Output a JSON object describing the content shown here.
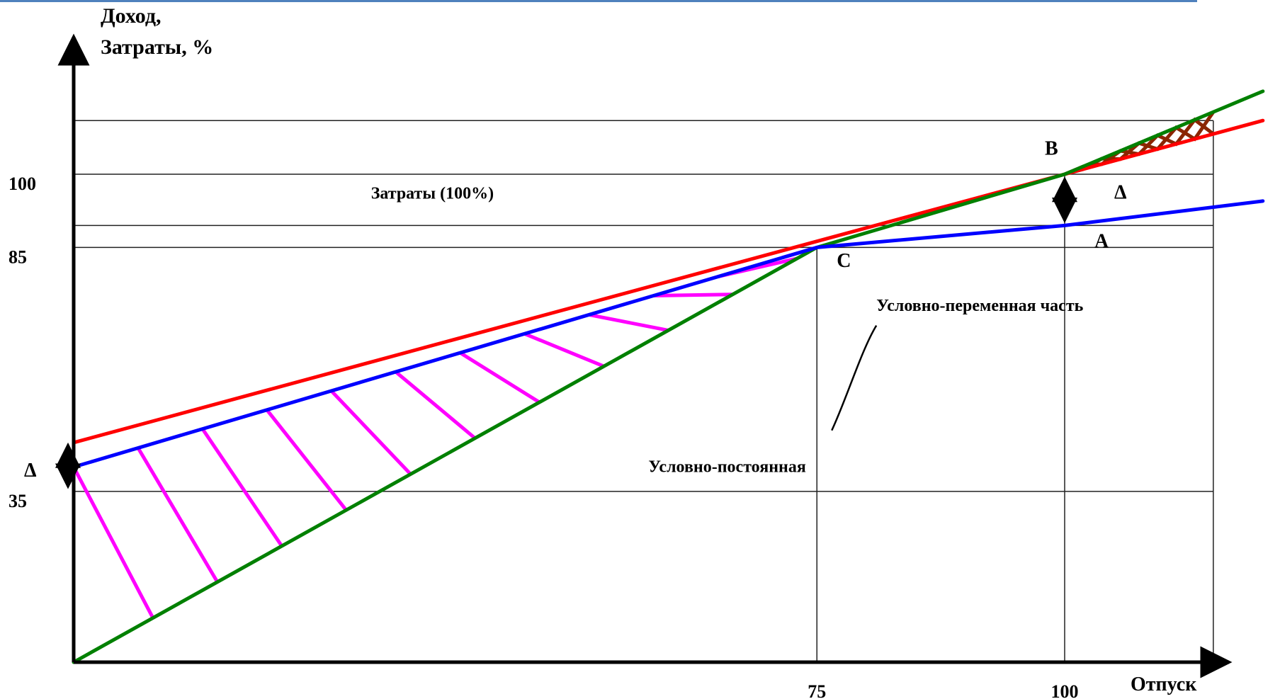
{
  "accent_color": "#4f81bd",
  "chart_data": {
    "type": "line",
    "y_axis_title": [
      "Доход,",
      "Затраты, %"
    ],
    "x_axis_title": "Отпуск",
    "y_ticks": [
      {
        "value": 35,
        "label": "35"
      },
      {
        "value": 85,
        "label": "85"
      },
      {
        "value": 100,
        "label": "100"
      }
    ],
    "x_ticks": [
      {
        "value": 75,
        "label": "75"
      },
      {
        "value": 100,
        "label": "100"
      }
    ],
    "ylim": [
      0,
      130
    ],
    "xlim": [
      0,
      120
    ],
    "series": [
      {
        "key": "total_cost",
        "color": "#ff0000",
        "x": [
          0,
          100,
          120
        ],
        "y": [
          45,
          100,
          111
        ]
      },
      {
        "key": "revenue",
        "color": "#008000",
        "x": [
          0,
          75,
          100,
          120
        ],
        "y": [
          0,
          85,
          100,
          117
        ]
      },
      {
        "key": "variable_part",
        "color": "#0000ff",
        "x": [
          0,
          75,
          100,
          120
        ],
        "y": [
          40,
          85,
          89.5,
          94.5
        ]
      }
    ],
    "grid_lines_y": [
      35,
      85,
      89.5,
      100,
      111
    ],
    "grid_lines_x": [
      75,
      100,
      115
    ],
    "annotations": [
      {
        "key": "costs_label",
        "text": "Затраты (100%)",
        "x": 30,
        "y": 95
      },
      {
        "key": "point_b",
        "text": "В",
        "x": 98,
        "y": 104
      },
      {
        "key": "delta_right",
        "text": "Δ",
        "x": 105,
        "y": 95
      },
      {
        "key": "point_a",
        "text": "А",
        "x": 103,
        "y": 85
      },
      {
        "key": "point_c",
        "text": "С",
        "x": 77,
        "y": 81
      },
      {
        "key": "variable_label",
        "text": "Условно-переменная часть",
        "x": 81,
        "y": 72
      },
      {
        "key": "fixed_label",
        "text": "Условно-постоянная",
        "x": 58,
        "y": 39
      },
      {
        "key": "delta_left",
        "text": "Δ",
        "x": -5,
        "y": 38
      }
    ],
    "shaded_regions": [
      {
        "key": "loss_zone",
        "color": "#ff00ff",
        "between": [
          "variable_part",
          "revenue"
        ],
        "x_range": [
          0,
          75
        ]
      },
      {
        "key": "profit_zone",
        "color": "#8b2500",
        "between": [
          "revenue",
          "total_cost"
        ],
        "x_range": [
          100,
          115
        ]
      }
    ]
  }
}
